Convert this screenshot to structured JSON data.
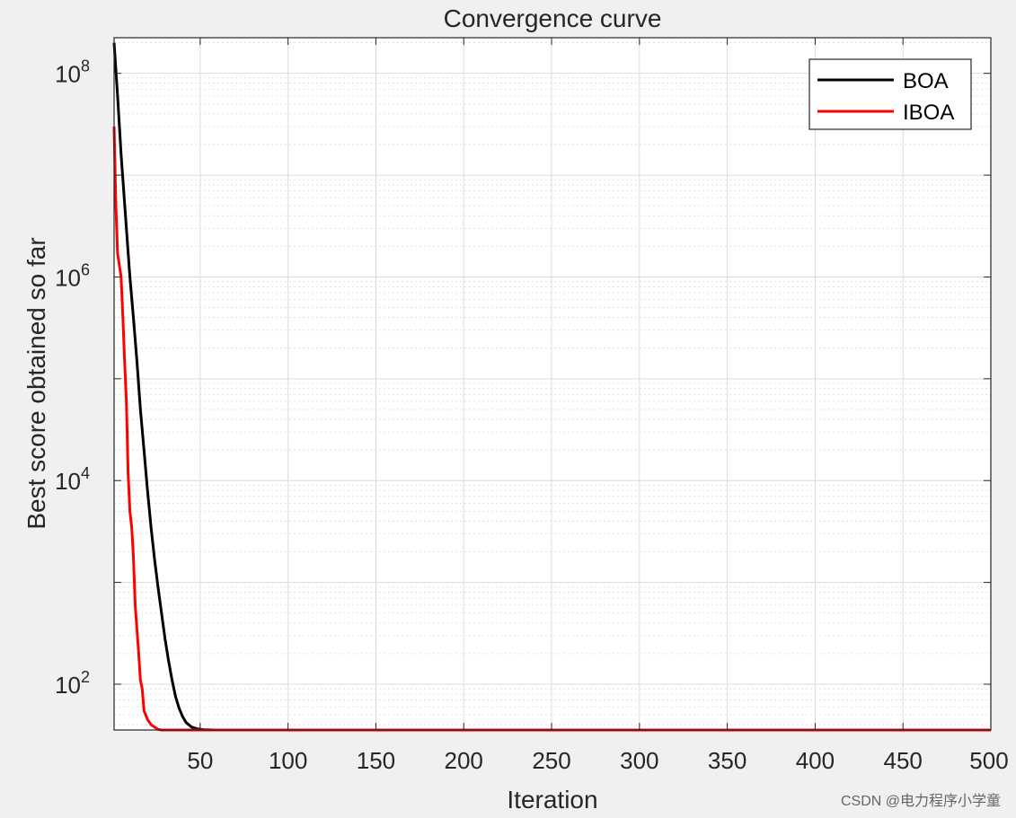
{
  "chart_data": {
    "type": "line",
    "title": "Convergence curve",
    "xlabel": "Iteration",
    "ylabel": "Best score obtained so far",
    "xlim": [
      1,
      500
    ],
    "ylim_log10": [
      1.55,
      8.35
    ],
    "yscale": "log",
    "grid": true,
    "minor_grid": true,
    "legend_position": "top-right",
    "x_ticks": [
      50,
      100,
      150,
      200,
      250,
      300,
      350,
      400,
      450,
      500
    ],
    "y_ticks": [
      {
        "base": "10",
        "exp": "2",
        "value": 100
      },
      {
        "base": "10",
        "exp": "4",
        "value": 10000
      },
      {
        "base": "10",
        "exp": "6",
        "value": 1000000
      },
      {
        "base": "10",
        "exp": "8",
        "value": 100000000
      }
    ],
    "series": [
      {
        "name": "BOA",
        "color": "#000000",
        "points": [
          [
            1,
            200000000
          ],
          [
            3,
            60000000
          ],
          [
            5,
            16000000
          ],
          [
            8,
            3000000
          ],
          [
            10,
            1000000
          ],
          [
            12,
            400000
          ],
          [
            14,
            150000
          ],
          [
            16,
            50000
          ],
          [
            18,
            20000
          ],
          [
            20,
            8000
          ],
          [
            22,
            3500
          ],
          [
            24,
            1700
          ],
          [
            26,
            900
          ],
          [
            28,
            500
          ],
          [
            30,
            280
          ],
          [
            32,
            170
          ],
          [
            34,
            110
          ],
          [
            36,
            75
          ],
          [
            38,
            58
          ],
          [
            40,
            48
          ],
          [
            42,
            42
          ],
          [
            45,
            38
          ],
          [
            48,
            36.5
          ],
          [
            52,
            35.8
          ],
          [
            58,
            35.4
          ],
          [
            70,
            35.2
          ],
          [
            100,
            35.1
          ],
          [
            200,
            35.1
          ],
          [
            300,
            35.1
          ],
          [
            400,
            35.1
          ],
          [
            500,
            35.1
          ]
        ]
      },
      {
        "name": "IBOA",
        "color": "#ff0000",
        "points": [
          [
            1,
            30000000
          ],
          [
            2,
            5000000
          ],
          [
            3,
            1700000
          ],
          [
            5,
            1000000
          ],
          [
            6,
            400000
          ],
          [
            7,
            150000
          ],
          [
            8,
            60000
          ],
          [
            9,
            12000
          ],
          [
            10,
            5000
          ],
          [
            11,
            3500
          ],
          [
            12,
            1800
          ],
          [
            13,
            600
          ],
          [
            14,
            350
          ],
          [
            15,
            200
          ],
          [
            16,
            110
          ],
          [
            17,
            90
          ],
          [
            18,
            55
          ],
          [
            20,
            45
          ],
          [
            22,
            40
          ],
          [
            24,
            38
          ],
          [
            26,
            36
          ],
          [
            28,
            35.3
          ],
          [
            30,
            35.1
          ],
          [
            500,
            35.1
          ]
        ]
      }
    ]
  },
  "watermark": "CSDN @电力程序小学童"
}
